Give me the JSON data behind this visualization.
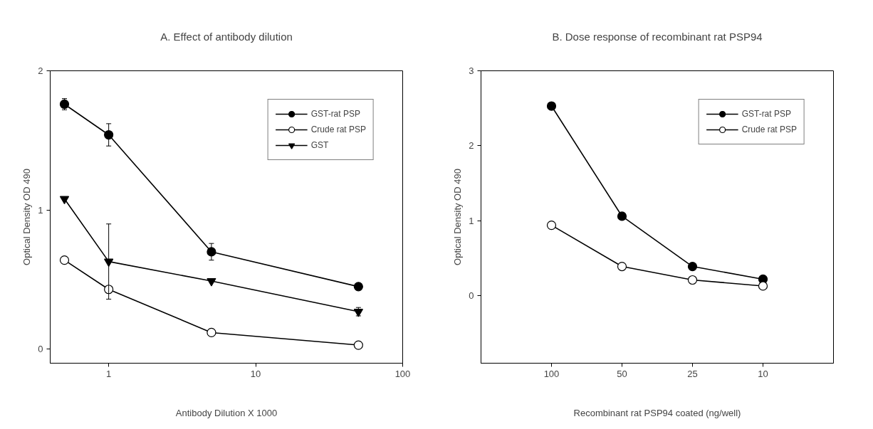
{
  "chart_data": [
    {
      "type": "line",
      "title": "A. Effect of antibody dilution",
      "xlabel": "Antibody Dilution X 1000",
      "ylabel": "Optical Density OD 490",
      "log": "x",
      "xlim": [
        0.4,
        100
      ],
      "xticks": [
        1,
        10,
        100
      ],
      "ylim": [
        -0.1,
        2
      ],
      "yticks": [
        0,
        1,
        2
      ],
      "grid": false,
      "legend": "top right",
      "x": [
        0.5,
        1,
        5,
        50
      ],
      "series": [
        {
          "name": "GST-rat PSP",
          "color": "#000000",
          "marker": "circle",
          "values": [
            1.76,
            1.54,
            0.7,
            0.45
          ],
          "errors": [
            0.04,
            0.08,
            0.06,
            null
          ]
        },
        {
          "name": "Crude rat PSP",
          "color": "#ffffff",
          "marker": "circle",
          "values": [
            0.64,
            0.43,
            0.12,
            0.03
          ],
          "errors": [
            null,
            null,
            null,
            null
          ]
        },
        {
          "name": "GST",
          "color": "#000000",
          "marker": "triangle",
          "values": [
            1.08,
            0.63,
            0.49,
            0.27
          ],
          "errors": [
            null,
            0.27,
            null,
            0.03
          ]
        }
      ]
    },
    {
      "type": "line",
      "title": "B. Dose response of recombinant rat PSP94",
      "xlabel": "Recombinant rat PSP94 coated (ng/well)",
      "ylabel": "Optical Density OD 490",
      "categories": [
        "100",
        "50",
        "25",
        "10"
      ],
      "ylim": [
        -0.9,
        3
      ],
      "yticks": [
        0,
        1,
        2,
        3
      ],
      "grid": false,
      "legend": "top right",
      "series": [
        {
          "name": "GST-rat PSP",
          "color": "#000000",
          "marker": "circle",
          "values": [
            2.53,
            1.06,
            0.39,
            0.22
          ]
        },
        {
          "name": "Crude rat PSP",
          "color": "#ffffff",
          "marker": "circle",
          "values": [
            0.94,
            0.39,
            0.21,
            0.13
          ]
        }
      ]
    }
  ]
}
